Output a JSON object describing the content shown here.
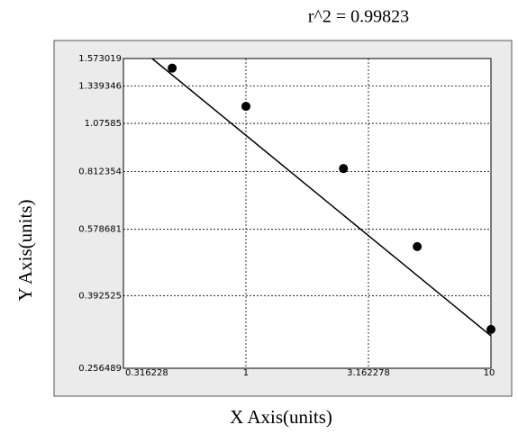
{
  "chart_data": {
    "type": "scatter",
    "title": "r^2  =  0.99823",
    "x_label": "X Axis(units)",
    "y_label": "Y Axis(units)",
    "x": [
      0.5,
      1,
      2.5,
      5,
      10
    ],
    "values": [
      1.487,
      1.189,
      0.826,
      0.523,
      0.322
    ],
    "color": "#000000",
    "fit": {
      "x": [
        0.414,
        10
      ],
      "values": [
        1.573019,
        0.31
      ],
      "color": "#000000"
    },
    "xlim": [
      0.316228,
      10
    ],
    "xticks": [
      0.316228,
      1,
      3.162278,
      10
    ],
    "ylim": [
      0.256489,
      1.573019
    ],
    "yticks": [
      0.256489,
      0.392525,
      0.578681,
      0.812354,
      1.07585,
      1.339346,
      1.573019
    ],
    "xscale": "log",
    "yscale": "log",
    "grid": true
  }
}
